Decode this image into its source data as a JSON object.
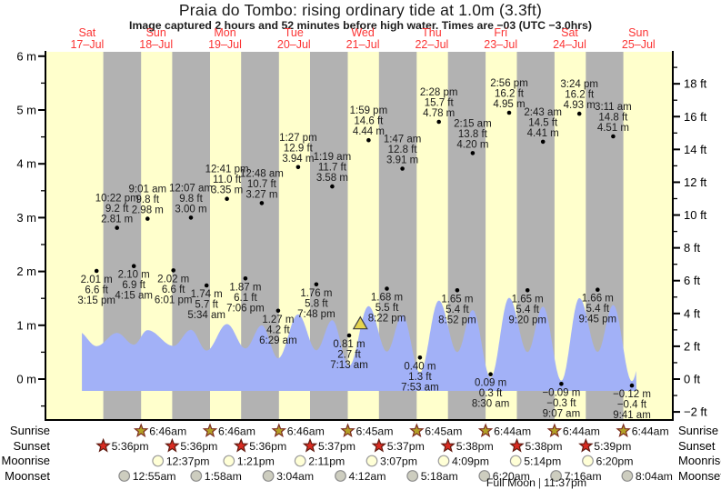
{
  "header": {
    "title": "Praia do Tombo: rising  ordinary tide at 1.0m (3.3ft)",
    "subtitle": "Image captured 2 hours and 52 minutes before high water. Times are −03 (UTC −3.0hrs)"
  },
  "side_labels": {
    "sunrise": "Sunrise",
    "sunset": "Sunset",
    "moonrise": "Moonrise",
    "moonset": "Moonset"
  },
  "footer": {
    "full_moon_label": "Full Moon",
    "separator": "|",
    "full_moon_time": "11:37pm"
  },
  "colors": {
    "day_band": "#ffffcc",
    "night_band": "#b2b2b2",
    "tide_fill": "#a2b1f7",
    "day_label": "#fb3434",
    "annotation_text": "#1b1b1b",
    "axis_text": "#000000",
    "sunrise_star": "#b3a126",
    "sunset_star": "#d92b21",
    "moonrise_circle": "#ffffd6",
    "moonset_circle": "#cdcdbf",
    "current_marker": "#e6d54e"
  },
  "chart_data": {
    "type": "area",
    "title": "Praia do Tombo: rising  ordinary tide at 1.0m (3.3ft)",
    "ylabel_left": "m",
    "ylabel_right": "ft",
    "grid": false,
    "days": [
      {
        "name": "Sat",
        "date": "17–Jul"
      },
      {
        "name": "Sun",
        "date": "18–Jul"
      },
      {
        "name": "Mon",
        "date": "19–Jul"
      },
      {
        "name": "Tue",
        "date": "20–Jul"
      },
      {
        "name": "Wed",
        "date": "21–Jul"
      },
      {
        "name": "Thu",
        "date": "22–Jul"
      },
      {
        "name": "Fri",
        "date": "23–Jul"
      },
      {
        "name": "Sat",
        "date": "24–Jul"
      },
      {
        "name": "Sun",
        "date": "25–Jul"
      }
    ],
    "y_axis_left": {
      "unit": "m",
      "min": -0.75,
      "max": 6.1,
      "ticks": [
        "6 m",
        "5 m",
        "4 m",
        "3 m",
        "2 m",
        "1 m",
        "0 m"
      ]
    },
    "y_axis_right": {
      "unit": "ft",
      "min": -2.5,
      "max": 20,
      "ticks": [
        "18 ft",
        "16 ft",
        "14 ft",
        "12 ft",
        "10 ft",
        "8 ft",
        "6 ft",
        "4 ft",
        "2 ft",
        "0 ft",
        "−2 ft"
      ]
    },
    "tide_events": [
      {
        "day": 0,
        "t": 15.25,
        "type": "low",
        "m": 2.01,
        "m_label": "2.01 m",
        "ft_label": "6.6 ft",
        "time": "3:15 pm"
      },
      {
        "day": 0,
        "t": 22.37,
        "type": "high",
        "m": 2.81,
        "m_label": "2.81 m",
        "ft_label": "9.2 ft",
        "time": "10:22 pm"
      },
      {
        "day": 1,
        "t": 4.25,
        "type": "low",
        "m": 2.1,
        "m_label": "2.10 m",
        "ft_label": "6.9 ft",
        "time": "4:15 am"
      },
      {
        "day": 1,
        "t": 9.02,
        "type": "high",
        "m": 2.98,
        "m_label": "2.98 m",
        "ft_label": "9.8 ft",
        "time": "9:01 am"
      },
      {
        "day": 1,
        "t": 18.02,
        "type": "low",
        "m": 2.02,
        "m_label": "2.02 m",
        "ft_label": "6.6 ft",
        "time": "6:01 pm"
      },
      {
        "day": 2,
        "t": 0.12,
        "type": "high",
        "m": 3.0,
        "m_label": "3.00 m",
        "ft_label": "9.8 ft",
        "time": "12:07 am"
      },
      {
        "day": 2,
        "t": 5.57,
        "type": "low",
        "m": 1.74,
        "m_label": "1.74 m",
        "ft_label": "5.7 ft",
        "time": "5:34 am"
      },
      {
        "day": 2,
        "t": 12.68,
        "type": "high",
        "m": 3.35,
        "m_label": "3.35 m",
        "ft_label": "11.0 ft",
        "time": "12:41 pm"
      },
      {
        "day": 2,
        "t": 19.1,
        "type": "low",
        "m": 1.87,
        "m_label": "1.87 m",
        "ft_label": "6.1 ft",
        "time": "7:06 pm"
      },
      {
        "day": 3,
        "t": 0.8,
        "type": "high",
        "m": 3.27,
        "m_label": "3.27 m",
        "ft_label": "10.7 ft",
        "time": "12:48 am"
      },
      {
        "day": 3,
        "t": 6.48,
        "type": "low",
        "m": 1.27,
        "m_label": "1.27 m",
        "ft_label": "4.2 ft",
        "time": "6:29 am"
      },
      {
        "day": 3,
        "t": 13.45,
        "type": "high",
        "m": 3.94,
        "m_label": "3.94 m",
        "ft_label": "12.9 ft",
        "time": "1:27 pm"
      },
      {
        "day": 3,
        "t": 19.8,
        "type": "low",
        "m": 1.76,
        "m_label": "1.76 m",
        "ft_label": "5.8 ft",
        "time": "7:48 pm"
      },
      {
        "day": 4,
        "t": 1.32,
        "type": "high",
        "m": 3.58,
        "m_label": "3.58 m",
        "ft_label": "11.7 ft",
        "time": "1:19 am"
      },
      {
        "day": 4,
        "t": 7.22,
        "type": "low",
        "m": 0.81,
        "m_label": "0.81 m",
        "ft_label": "2.7 ft",
        "time": "7:13 am"
      },
      {
        "day": 4,
        "t": 13.98,
        "type": "high",
        "m": 4.44,
        "m_label": "4.44 m",
        "ft_label": "14.6 ft",
        "time": "1:59 pm"
      },
      {
        "day": 4,
        "t": 20.37,
        "type": "low",
        "m": 1.68,
        "m_label": "1.68 m",
        "ft_label": "5.5 ft",
        "time": "8:22 pm"
      },
      {
        "day": 5,
        "t": 1.78,
        "type": "high",
        "m": 3.91,
        "m_label": "3.91 m",
        "ft_label": "12.8 ft",
        "time": "1:47 am"
      },
      {
        "day": 5,
        "t": 7.88,
        "type": "low",
        "m": 0.4,
        "m_label": "0.40 m",
        "ft_label": "1.3 ft",
        "time": "7:53 am"
      },
      {
        "day": 5,
        "t": 14.47,
        "type": "high",
        "m": 4.78,
        "m_label": "4.78 m",
        "ft_label": "15.7 ft",
        "time": "2:28 pm"
      },
      {
        "day": 5,
        "t": 20.87,
        "type": "low",
        "m": 1.65,
        "m_label": "1.65 m",
        "ft_label": "5.4 ft",
        "time": "8:52 pm"
      },
      {
        "day": 6,
        "t": 2.25,
        "type": "high",
        "m": 4.2,
        "m_label": "4.20 m",
        "ft_label": "13.8 ft",
        "time": "2:15 am"
      },
      {
        "day": 6,
        "t": 8.5,
        "type": "low",
        "m": 0.09,
        "m_label": "0.09 m",
        "ft_label": "0.3 ft",
        "time": "8:30 am"
      },
      {
        "day": 6,
        "t": 14.93,
        "type": "high",
        "m": 4.95,
        "m_label": "4.95 m",
        "ft_label": "16.2 ft",
        "time": "2:56 pm"
      },
      {
        "day": 6,
        "t": 21.33,
        "type": "low",
        "m": 1.65,
        "m_label": "1.65 m",
        "ft_label": "5.4 ft",
        "time": "9:20 pm"
      },
      {
        "day": 7,
        "t": 2.72,
        "type": "high",
        "m": 4.41,
        "m_label": "4.41 m",
        "ft_label": "14.5 ft",
        "time": "2:43 am"
      },
      {
        "day": 7,
        "t": 9.12,
        "type": "low",
        "m": -0.09,
        "m_label": "−0.09 m",
        "ft_label": "−0.3 ft",
        "time": "9:07 am"
      },
      {
        "day": 7,
        "t": 15.4,
        "type": "high",
        "m": 4.93,
        "m_label": "4.93 m",
        "ft_label": "16.2 ft",
        "time": "3:24 pm"
      },
      {
        "day": 7,
        "t": 21.75,
        "type": "low",
        "m": 1.66,
        "m_label": "1.66 m",
        "ft_label": "5.4 ft",
        "time": "9:45 pm"
      },
      {
        "day": 8,
        "t": 3.18,
        "type": "high",
        "m": 4.51,
        "m_label": "4.51 m",
        "ft_label": "14.8 ft",
        "time": "3:11 am"
      },
      {
        "day": 8,
        "t": 9.68,
        "type": "low",
        "m": -0.12,
        "m_label": "−0.12 m",
        "ft_label": "−0.4 ft",
        "time": "9:41 am"
      }
    ],
    "sun_moon": {
      "sunrise": [
        {
          "day": 1,
          "t": 6.77,
          "time": "6:46am"
        },
        {
          "day": 2,
          "t": 6.77,
          "time": "6:46am"
        },
        {
          "day": 3,
          "t": 6.77,
          "time": "6:46am"
        },
        {
          "day": 4,
          "t": 6.75,
          "time": "6:45am"
        },
        {
          "day": 5,
          "t": 6.75,
          "time": "6:45am"
        },
        {
          "day": 6,
          "t": 6.73,
          "time": "6:44am"
        },
        {
          "day": 7,
          "t": 6.73,
          "time": "6:44am"
        },
        {
          "day": 8,
          "t": 6.73,
          "time": "6:44am"
        }
      ],
      "sunset": [
        {
          "day": 0,
          "t": 17.6,
          "time": "5:36pm"
        },
        {
          "day": 1,
          "t": 17.6,
          "time": "5:36pm"
        },
        {
          "day": 2,
          "t": 17.6,
          "time": "5:36pm"
        },
        {
          "day": 3,
          "t": 17.62,
          "time": "5:37pm"
        },
        {
          "day": 4,
          "t": 17.62,
          "time": "5:37pm"
        },
        {
          "day": 5,
          "t": 17.63,
          "time": "5:38pm"
        },
        {
          "day": 6,
          "t": 17.63,
          "time": "5:38pm"
        },
        {
          "day": 7,
          "t": 17.65,
          "time": "5:39pm"
        }
      ],
      "moonrise": [
        {
          "day": 1,
          "t": 12.62,
          "time": "12:37pm"
        },
        {
          "day": 2,
          "t": 13.35,
          "time": "1:21pm"
        },
        {
          "day": 3,
          "t": 14.18,
          "time": "2:11pm"
        },
        {
          "day": 4,
          "t": 15.12,
          "time": "3:07pm"
        },
        {
          "day": 5,
          "t": 16.15,
          "time": "4:09pm"
        },
        {
          "day": 6,
          "t": 17.23,
          "time": "5:14pm"
        },
        {
          "day": 7,
          "t": 18.33,
          "time": "6:20pm"
        }
      ],
      "moonset": [
        {
          "day": 1,
          "t": 0.92,
          "time": "12:55am"
        },
        {
          "day": 2,
          "t": 1.97,
          "time": "1:58am"
        },
        {
          "day": 3,
          "t": 3.07,
          "time": "3:04am"
        },
        {
          "day": 4,
          "t": 4.2,
          "time": "4:12am"
        },
        {
          "day": 5,
          "t": 5.3,
          "time": "5:18am"
        },
        {
          "day": 6,
          "t": 6.33,
          "time": "6:20am"
        },
        {
          "day": 7,
          "t": 7.27,
          "time": "7:16am"
        },
        {
          "day": 8,
          "t": 8.07,
          "time": "8:04am"
        }
      ]
    },
    "current_marker": {
      "day": 4,
      "t": 11.12,
      "tide_m": 1.0,
      "state": "rising"
    }
  }
}
